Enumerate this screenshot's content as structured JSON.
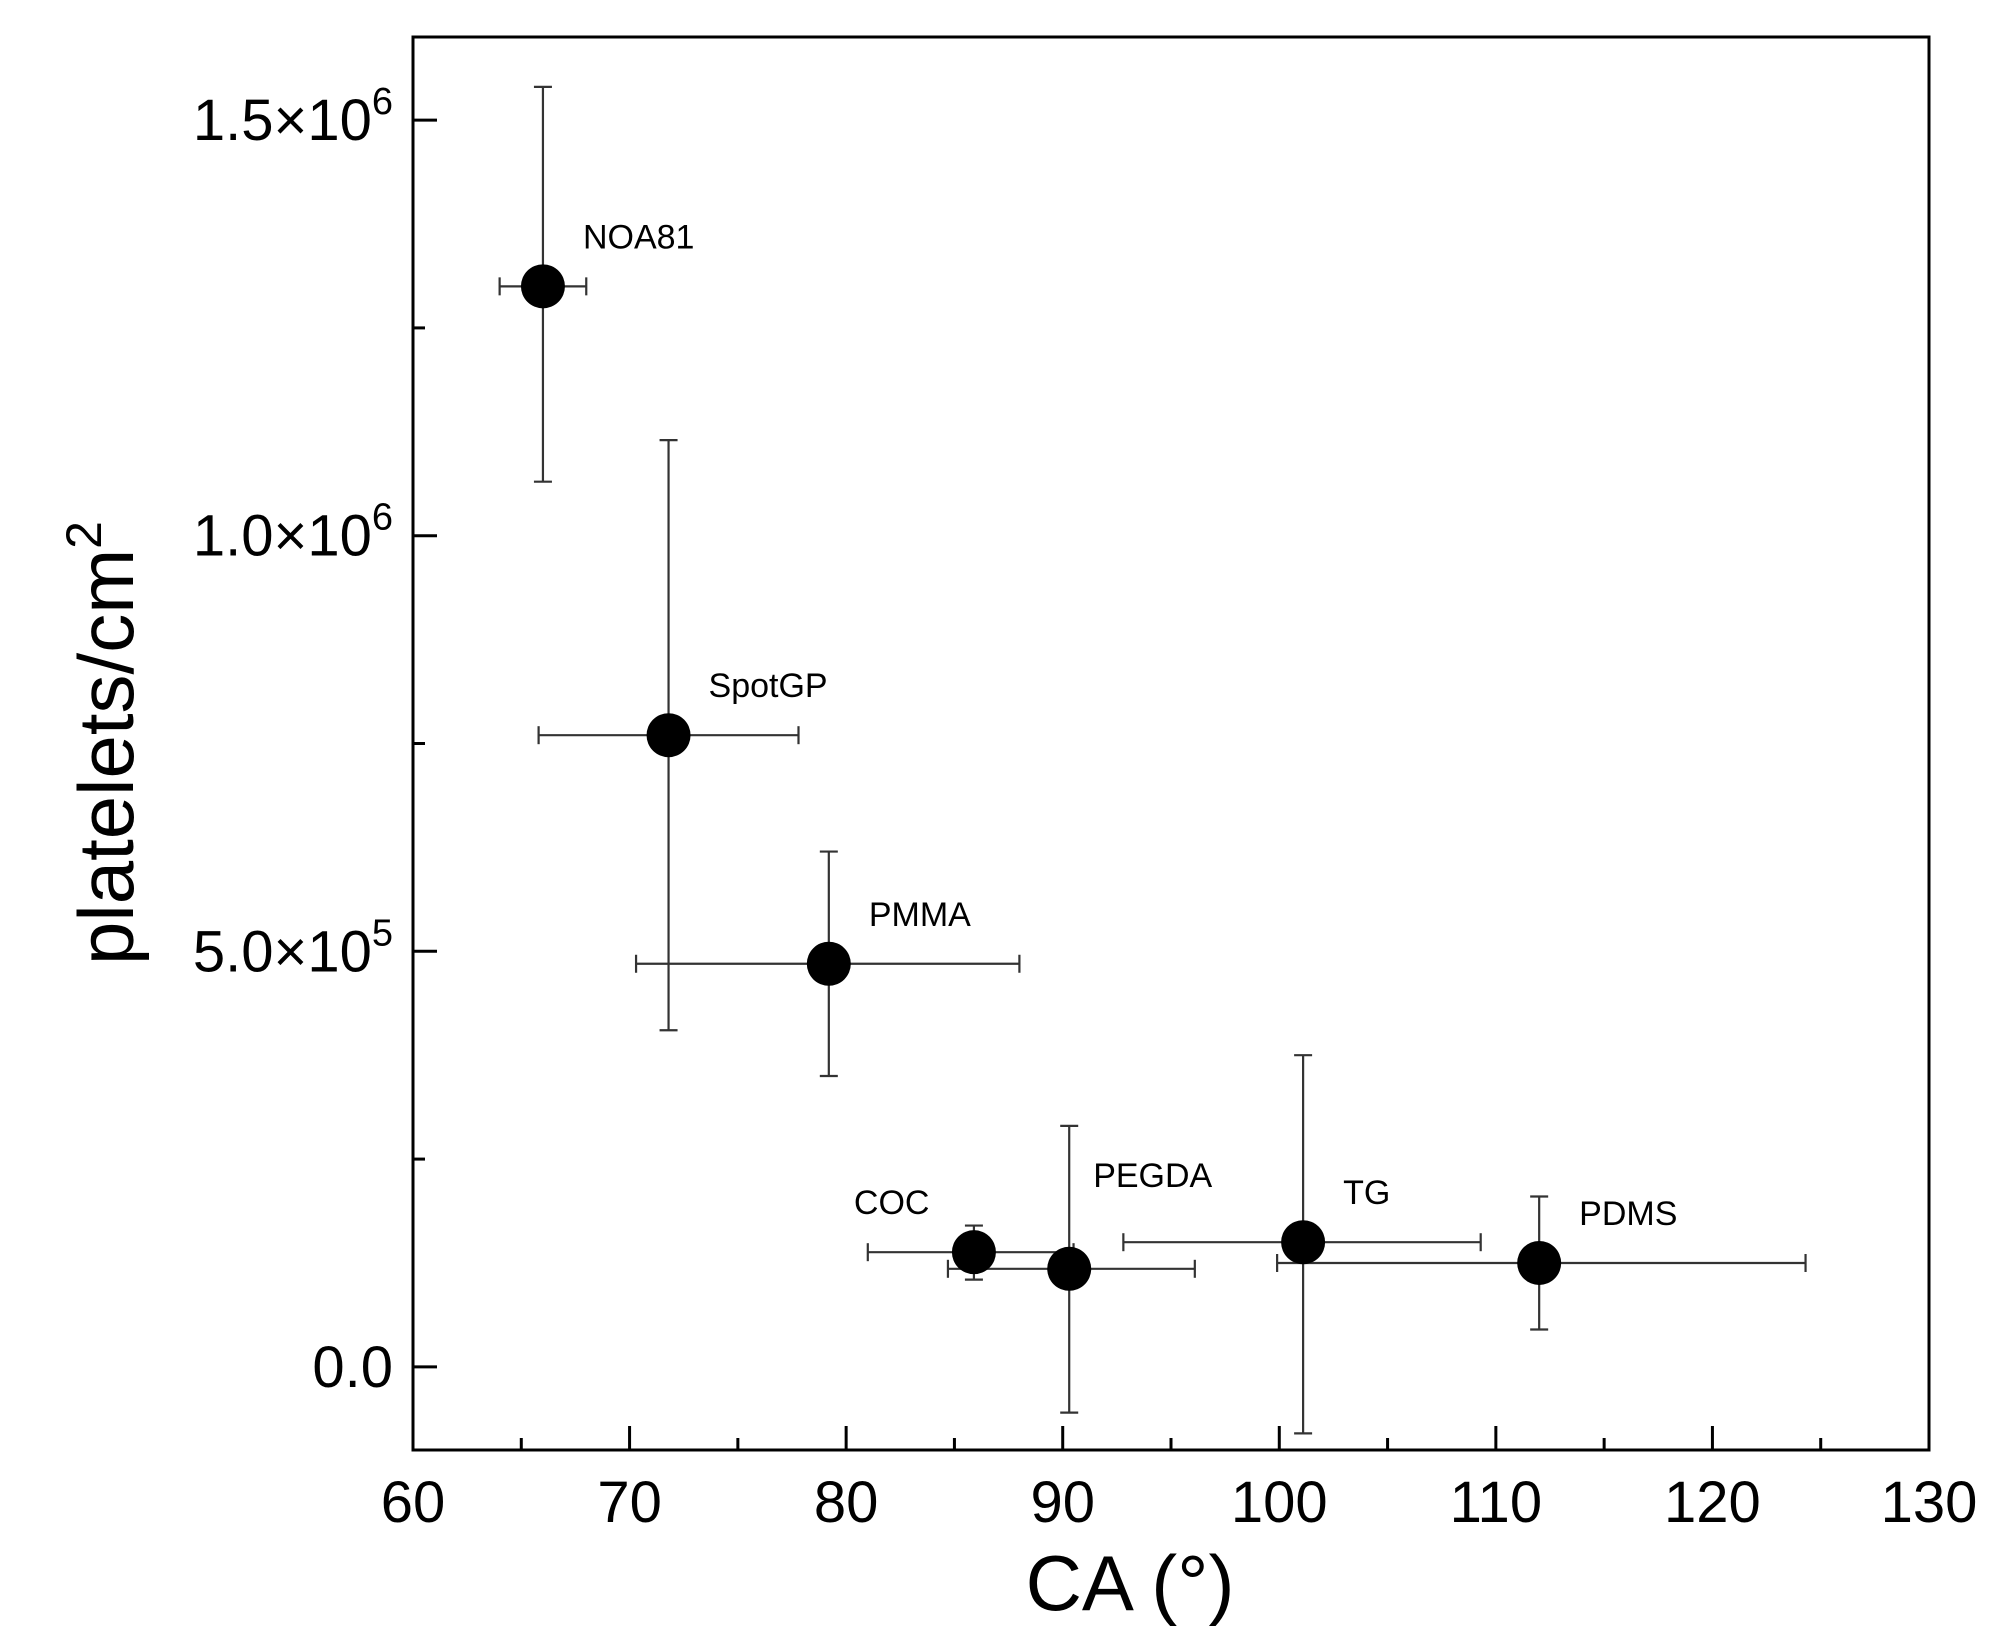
{
  "chart_data": {
    "type": "scatter",
    "xlabel": "CA (°)",
    "ylabel": {
      "base": "platelets/cm",
      "exponent": "2"
    },
    "xlim": [
      60,
      130
    ],
    "ylim": [
      -100000,
      1600000
    ],
    "x_ticks": {
      "major": [
        60,
        70,
        80,
        90,
        100,
        110,
        120,
        130
      ],
      "minor": [
        65,
        75,
        85,
        95,
        105,
        115,
        125
      ]
    },
    "y_ticks": {
      "major": [
        {
          "value": 0,
          "mantissa": "0.0",
          "times": "",
          "exponent": ""
        },
        {
          "value": 500000,
          "mantissa": "5.0",
          "times": "×10",
          "exponent": "5"
        },
        {
          "value": 1000000,
          "mantissa": "1.0",
          "times": "×10",
          "exponent": "6"
        },
        {
          "value": 1500000,
          "mantissa": "1.5",
          "times": "×10",
          "exponent": "6"
        }
      ],
      "minor": [
        250000,
        750000,
        1250000
      ]
    },
    "grid": false,
    "legend": "none",
    "marker_color": "#000000",
    "points": [
      {
        "label": "NOA81",
        "x": 66,
        "y": 1300000,
        "xerr_low": 64,
        "xerr_high": 68,
        "yerr_low": 1065000,
        "yerr_high": 1540000
      },
      {
        "label": "SpotGP",
        "x": 71.8,
        "y": 760000,
        "xerr_low": 65.8,
        "xerr_high": 77.8,
        "yerr_low": 405000,
        "yerr_high": 1115000
      },
      {
        "label": "PMMA",
        "x": 79.2,
        "y": 485000,
        "xerr_low": 70.3,
        "xerr_high": 88,
        "yerr_low": 350000,
        "yerr_high": 620000
      },
      {
        "label": "COC",
        "x": 85.9,
        "y": 138000,
        "xerr_low": 81,
        "xerr_high": 90.5,
        "yerr_low": 105000,
        "yerr_high": 170000
      },
      {
        "label": "PEGDA",
        "x": 90.3,
        "y": 118000,
        "xerr_low": 84.7,
        "xerr_high": 96.1,
        "yerr_low": -55000,
        "yerr_high": 290000
      },
      {
        "label": "TG",
        "x": 101.1,
        "y": 150000,
        "xerr_low": 92.8,
        "xerr_high": 109.3,
        "yerr_low": -80000,
        "yerr_high": 375000
      },
      {
        "label": "PDMS",
        "x": 112,
        "y": 125000,
        "xerr_low": 99.9,
        "xerr_high": 124.3,
        "yerr_low": 45000,
        "yerr_high": 205000
      }
    ]
  }
}
